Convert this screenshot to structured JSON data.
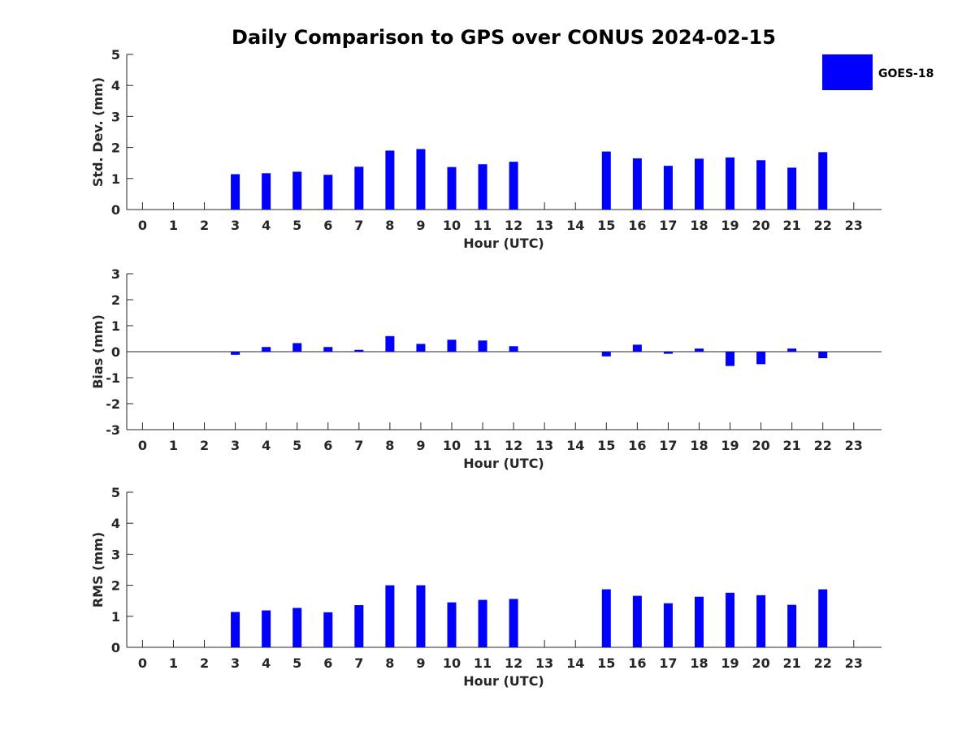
{
  "title": "Daily Comparison to GPS over CONUS 2024-02-15",
  "legend": {
    "label": "GOES-18",
    "color": "#0000ff",
    "placement": "top-right"
  },
  "chart_data": [
    {
      "type": "bar",
      "id": "std",
      "xlabel": "Hour (UTC)",
      "ylabel": "Std. Dev. (mm)",
      "ylim": [
        0,
        5
      ],
      "yticks": [
        "0",
        "1",
        "2",
        "3",
        "4",
        "5"
      ],
      "categories": [
        "0",
        "1",
        "2",
        "3",
        "4",
        "5",
        "6",
        "7",
        "8",
        "9",
        "10",
        "11",
        "12",
        "13",
        "14",
        "15",
        "16",
        "17",
        "18",
        "19",
        "20",
        "21",
        "22",
        "23"
      ],
      "series": [
        {
          "name": "GOES-18",
          "color": "#0000ff",
          "values": [
            null,
            null,
            null,
            1.14,
            1.17,
            1.22,
            1.12,
            1.38,
            1.9,
            1.95,
            1.37,
            1.46,
            1.54,
            null,
            null,
            1.87,
            1.65,
            1.41,
            1.64,
            1.68,
            1.59,
            1.35,
            1.85,
            null
          ]
        }
      ]
    },
    {
      "type": "bar",
      "id": "bias",
      "xlabel": "Hour (UTC)",
      "ylabel": "Bias (mm)",
      "ylim": [
        -3,
        3
      ],
      "yticks": [
        "-3",
        "-2",
        "-1",
        "0",
        "1",
        "2",
        "3"
      ],
      "categories": [
        "0",
        "1",
        "2",
        "3",
        "4",
        "5",
        "6",
        "7",
        "8",
        "9",
        "10",
        "11",
        "12",
        "13",
        "14",
        "15",
        "16",
        "17",
        "18",
        "19",
        "20",
        "21",
        "22",
        "23"
      ],
      "series": [
        {
          "name": "GOES-18",
          "color": "#0000ff",
          "values": [
            null,
            null,
            null,
            -0.12,
            0.18,
            0.33,
            0.18,
            0.07,
            0.6,
            0.3,
            0.46,
            0.43,
            0.21,
            null,
            null,
            -0.18,
            0.27,
            -0.08,
            0.12,
            -0.55,
            -0.48,
            0.12,
            -0.25,
            null
          ]
        }
      ]
    },
    {
      "type": "bar",
      "id": "rms",
      "xlabel": "Hour (UTC)",
      "ylabel": "RMS (mm)",
      "ylim": [
        0,
        5
      ],
      "yticks": [
        "0",
        "1",
        "2",
        "3",
        "4",
        "5"
      ],
      "categories": [
        "0",
        "1",
        "2",
        "3",
        "4",
        "5",
        "6",
        "7",
        "8",
        "9",
        "10",
        "11",
        "12",
        "13",
        "14",
        "15",
        "16",
        "17",
        "18",
        "19",
        "20",
        "21",
        "22",
        "23"
      ],
      "series": [
        {
          "name": "GOES-18",
          "color": "#0000ff",
          "values": [
            null,
            null,
            null,
            1.14,
            1.19,
            1.27,
            1.13,
            1.36,
            2.0,
            2.0,
            1.45,
            1.53,
            1.56,
            null,
            null,
            1.87,
            1.66,
            1.42,
            1.63,
            1.76,
            1.68,
            1.37,
            1.87,
            null
          ]
        }
      ]
    }
  ]
}
